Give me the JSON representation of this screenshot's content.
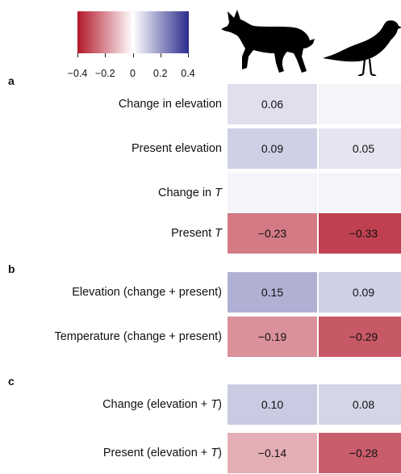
{
  "chart_data": {
    "type": "heatmap",
    "colorbar": {
      "min": -0.4,
      "max": 0.4,
      "ticks": [
        "−0.4",
        "−0.2",
        "0",
        "0.2",
        "0.4"
      ],
      "tick_values": [
        -0.4,
        -0.2,
        0,
        0.2,
        0.4
      ],
      "colors": {
        "low": "#b2182b",
        "mid": "#ffffff",
        "high": "#2b2c8c"
      }
    },
    "columns": [
      "fox-silhouette-icon",
      "bird-silhouette-icon"
    ],
    "panels": [
      {
        "letter": "a",
        "rows": [
          {
            "label": "Change in elevation",
            "italic_suffix": "",
            "values": [
              0.06,
              0.02
            ],
            "labels": [
              "0.06",
              ""
            ]
          },
          {
            "label": "Present elevation",
            "italic_suffix": "",
            "values": [
              0.09,
              0.05
            ],
            "labels": [
              "0.09",
              "0.05"
            ]
          },
          {
            "label": "Change in ",
            "italic_suffix": "T",
            "values": [
              0.02,
              0.02
            ],
            "labels": [
              "",
              ""
            ]
          },
          {
            "label": "Present ",
            "italic_suffix": "T",
            "values": [
              -0.23,
              -0.33
            ],
            "labels": [
              "−0.23",
              "−0.33"
            ]
          }
        ]
      },
      {
        "letter": "b",
        "rows": [
          {
            "label": "Elevation (change + present)",
            "italic_suffix": "",
            "values": [
              0.15,
              0.09
            ],
            "labels": [
              "0.15",
              "0.09"
            ]
          },
          {
            "label": "Temperature (change + present)",
            "italic_suffix": "",
            "values": [
              -0.19,
              -0.29
            ],
            "labels": [
              "−0.19",
              "−0.29"
            ]
          }
        ]
      },
      {
        "letter": "c",
        "rows": [
          {
            "label": "Change (elevation + ",
            "italic_suffix": "T",
            "label_end": ")",
            "values": [
              0.1,
              0.08
            ],
            "labels": [
              "0.10",
              "0.08"
            ]
          },
          {
            "label": "Present (elevation + ",
            "italic_suffix": "T",
            "label_end": ")",
            "values": [
              -0.14,
              -0.28
            ],
            "labels": [
              "−0.14",
              "−0.28"
            ]
          }
        ]
      }
    ]
  }
}
